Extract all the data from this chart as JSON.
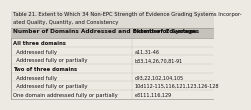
{
  "title_line1": "Table 21. Extent to Which 34 Non-EPC Strength of Evidence Grading Systems Incorpor-",
  "title_line2": "ated Quality, Quantity, and Consistency",
  "col1_header": "Number of Domains Addressed and Extent of Coverage",
  "col2_header": "Number of Systems",
  "rows": [
    {
      "label": "All three domains",
      "value": "",
      "indent": 0,
      "bold": true
    },
    {
      "label": "  Addressed fully",
      "value": "a11,31-46",
      "indent": 1,
      "bold": false
    },
    {
      "label": "  Addressed fully or partially",
      "value": "b33,14,26,70,81-91",
      "indent": 1,
      "bold": false
    },
    {
      "label": "Two of three domains",
      "value": "",
      "indent": 0,
      "bold": true
    },
    {
      "label": "  Addressed fully",
      "value": "c93,22,102,104,105",
      "indent": 1,
      "bold": false
    },
    {
      "label": "  Addressed fully or partially",
      "value": "10d112-115,116,121,123,126-128",
      "indent": 1,
      "bold": false
    },
    {
      "label": "One domain addressed fully or partially",
      "value": "e3111,116,129",
      "indent": 0,
      "bold": false
    }
  ],
  "bg_color": "#edeae4",
  "header_bg": "#c5c2bb",
  "title_bg": "#dedad4",
  "border_color": "#999990",
  "row_line_color": "#bbbbaa",
  "text_color": "#111111",
  "title_fontsize": 3.8,
  "header_fontsize": 4.2,
  "row_fontsize": 3.8,
  "col_split": 0.6
}
